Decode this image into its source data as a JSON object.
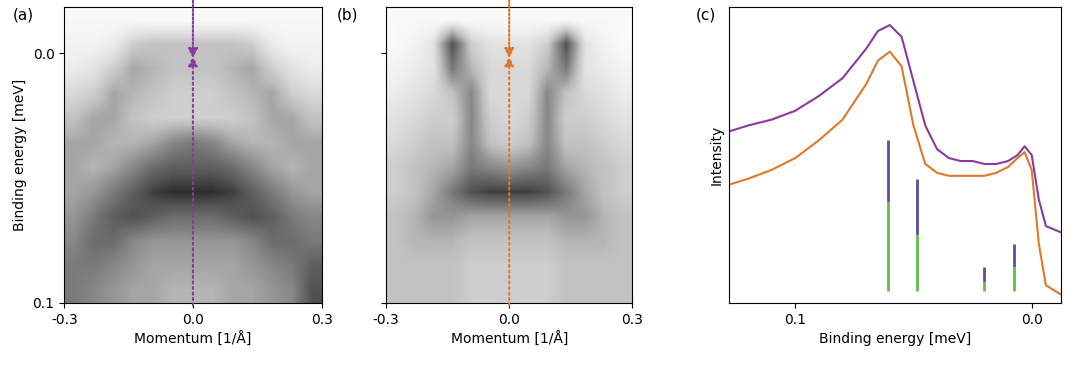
{
  "chart_data": [
    {
      "type": "heatmap",
      "label": "(a)",
      "x_label": "Momentum [1/Å]",
      "y_label": "Binding energy [meV]",
      "xlim": [
        -0.3,
        0.3
      ],
      "ylim": [
        0.1,
        -0.0185
      ],
      "xticks": [
        {
          "value": -0.3,
          "label": "-0.3"
        },
        {
          "value": 0.0,
          "label": "0.0"
        },
        {
          "value": 0.3,
          "label": "0.3"
        }
      ],
      "yticks": [
        {
          "value": 0.0,
          "label": "0.0"
        },
        0.1
      ],
      "color_range": [
        0,
        1
      ],
      "cut_momentum": 0.0,
      "color": "#8a3a9e",
      "cells": [
        [
          0.05,
          0.05,
          0.05,
          0.05,
          0.05,
          0.05,
          0.05,
          0.05,
          0.05,
          0.05,
          0.05,
          0.05,
          0.05
        ],
        [
          0.1,
          0.1,
          0.15,
          0.3,
          0.35,
          0.35,
          0.35,
          0.35,
          0.35,
          0.3,
          0.15,
          0.1,
          0.1
        ],
        [
          0.15,
          0.2,
          0.3,
          0.45,
          0.4,
          0.35,
          0.35,
          0.35,
          0.4,
          0.45,
          0.3,
          0.2,
          0.15
        ],
        [
          0.25,
          0.3,
          0.45,
          0.4,
          0.35,
          0.3,
          0.3,
          0.3,
          0.35,
          0.4,
          0.45,
          0.3,
          0.25
        ],
        [
          0.35,
          0.45,
          0.45,
          0.35,
          0.3,
          0.3,
          0.3,
          0.3,
          0.3,
          0.35,
          0.45,
          0.45,
          0.35
        ],
        [
          0.45,
          0.45,
          0.4,
          0.4,
          0.45,
          0.55,
          0.6,
          0.55,
          0.45,
          0.4,
          0.4,
          0.45,
          0.45
        ],
        [
          0.45,
          0.4,
          0.45,
          0.55,
          0.65,
          0.7,
          0.7,
          0.7,
          0.65,
          0.55,
          0.45,
          0.4,
          0.45
        ],
        [
          0.45,
          0.5,
          0.6,
          0.7,
          0.8,
          0.85,
          0.85,
          0.85,
          0.8,
          0.7,
          0.6,
          0.5,
          0.45
        ],
        [
          0.5,
          0.6,
          0.7,
          0.75,
          0.7,
          0.65,
          0.65,
          0.65,
          0.7,
          0.75,
          0.7,
          0.6,
          0.55
        ],
        [
          0.55,
          0.65,
          0.65,
          0.55,
          0.5,
          0.5,
          0.5,
          0.5,
          0.5,
          0.55,
          0.65,
          0.65,
          0.6
        ],
        [
          0.6,
          0.6,
          0.55,
          0.5,
          0.45,
          0.45,
          0.45,
          0.45,
          0.45,
          0.5,
          0.55,
          0.6,
          0.7
        ],
        [
          0.6,
          0.55,
          0.5,
          0.45,
          0.45,
          0.4,
          0.4,
          0.4,
          0.45,
          0.45,
          0.5,
          0.55,
          0.75
        ]
      ]
    },
    {
      "type": "heatmap",
      "label": "(b)",
      "tick_labels": "x",
      "x_label": "Momentum [1/Å]",
      "xlim": [
        -0.3,
        0.3
      ],
      "ylim": [
        0.1,
        -0.0185
      ],
      "xticks": [
        {
          "value": -0.3,
          "label": "-0.3"
        },
        {
          "value": 0.0,
          "label": "0.0"
        },
        {
          "value": 0.3,
          "label": "0.3"
        }
      ],
      "yticks": [
        0.0,
        0.1
      ],
      "color_range": [
        0,
        1
      ],
      "cut_momentum": 0.0,
      "color": "#e0782a",
      "cells": [
        [
          0.05,
          0.05,
          0.05,
          0.05,
          0.05,
          0.05,
          0.05,
          0.05,
          0.05,
          0.05,
          0.05,
          0.05,
          0.05
        ],
        [
          0.05,
          0.1,
          0.2,
          0.75,
          0.3,
          0.2,
          0.2,
          0.2,
          0.3,
          0.75,
          0.2,
          0.1,
          0.05
        ],
        [
          0.1,
          0.15,
          0.2,
          0.6,
          0.4,
          0.25,
          0.25,
          0.25,
          0.4,
          0.6,
          0.2,
          0.15,
          0.1
        ],
        [
          0.15,
          0.2,
          0.25,
          0.35,
          0.55,
          0.25,
          0.25,
          0.25,
          0.55,
          0.35,
          0.25,
          0.2,
          0.15
        ],
        [
          0.2,
          0.25,
          0.3,
          0.3,
          0.55,
          0.3,
          0.25,
          0.3,
          0.55,
          0.3,
          0.3,
          0.25,
          0.2
        ],
        [
          0.25,
          0.3,
          0.35,
          0.35,
          0.55,
          0.35,
          0.3,
          0.35,
          0.55,
          0.35,
          0.35,
          0.3,
          0.25
        ],
        [
          0.3,
          0.35,
          0.4,
          0.45,
          0.6,
          0.55,
          0.5,
          0.55,
          0.6,
          0.45,
          0.4,
          0.35,
          0.3
        ],
        [
          0.3,
          0.35,
          0.45,
          0.6,
          0.75,
          0.8,
          0.8,
          0.8,
          0.75,
          0.6,
          0.45,
          0.35,
          0.3
        ],
        [
          0.35,
          0.4,
          0.5,
          0.5,
          0.45,
          0.45,
          0.45,
          0.45,
          0.45,
          0.5,
          0.5,
          0.4,
          0.35
        ],
        [
          0.35,
          0.4,
          0.4,
          0.4,
          0.35,
          0.35,
          0.35,
          0.35,
          0.35,
          0.4,
          0.4,
          0.4,
          0.35
        ],
        [
          0.35,
          0.35,
          0.35,
          0.35,
          0.3,
          0.3,
          0.3,
          0.3,
          0.3,
          0.35,
          0.35,
          0.35,
          0.35
        ],
        [
          0.35,
          0.35,
          0.35,
          0.35,
          0.3,
          0.3,
          0.3,
          0.3,
          0.3,
          0.35,
          0.35,
          0.35,
          0.35
        ]
      ]
    },
    {
      "type": "line",
      "label": "(c)",
      "tick_labels": "x",
      "x_label": "Binding energy [meV]",
      "y_label": "Intensity",
      "xlim": [
        0.128,
        -0.0125
      ],
      "ylim": [
        0,
        1
      ],
      "xticks": [
        0.1,
        {
          "value": 0.0,
          "label": "0.0"
        }
      ],
      "x": [
        0.128,
        0.12,
        0.11,
        0.1,
        0.09,
        0.08,
        0.07,
        0.065,
        0.06,
        0.055,
        0.05,
        0.045,
        0.04,
        0.035,
        0.03,
        0.025,
        0.02,
        0.015,
        0.01,
        0.006,
        0.003,
        0.0,
        -0.003,
        -0.006,
        -0.012
      ],
      "series": [
        {
          "color": "#8a3a9e",
          "values": [
            0.58,
            0.6,
            0.62,
            0.65,
            0.7,
            0.76,
            0.86,
            0.92,
            0.94,
            0.9,
            0.75,
            0.6,
            0.52,
            0.49,
            0.48,
            0.48,
            0.47,
            0.47,
            0.48,
            0.5,
            0.53,
            0.5,
            0.35,
            0.26,
            0.24
          ]
        },
        {
          "color": "#e0782a",
          "values": [
            0.4,
            0.42,
            0.45,
            0.49,
            0.55,
            0.62,
            0.74,
            0.82,
            0.85,
            0.8,
            0.6,
            0.47,
            0.44,
            0.43,
            0.43,
            0.43,
            0.43,
            0.44,
            0.46,
            0.49,
            0.51,
            0.45,
            0.2,
            0.06,
            0.03
          ]
        }
      ],
      "markers": {
        "x": [
          0.0608,
          0.0483,
          0.02,
          0.0075
        ],
        "top": [
          0.55,
          0.42,
          0.12,
          0.2
        ],
        "split": [
          0.34,
          0.23,
          0.07,
          0.12
        ],
        "bottom": [
          0.04,
          0.04,
          0.04,
          0.04
        ],
        "colors": [
          "#5a4da6",
          "#5fbf4a"
        ]
      }
    }
  ]
}
